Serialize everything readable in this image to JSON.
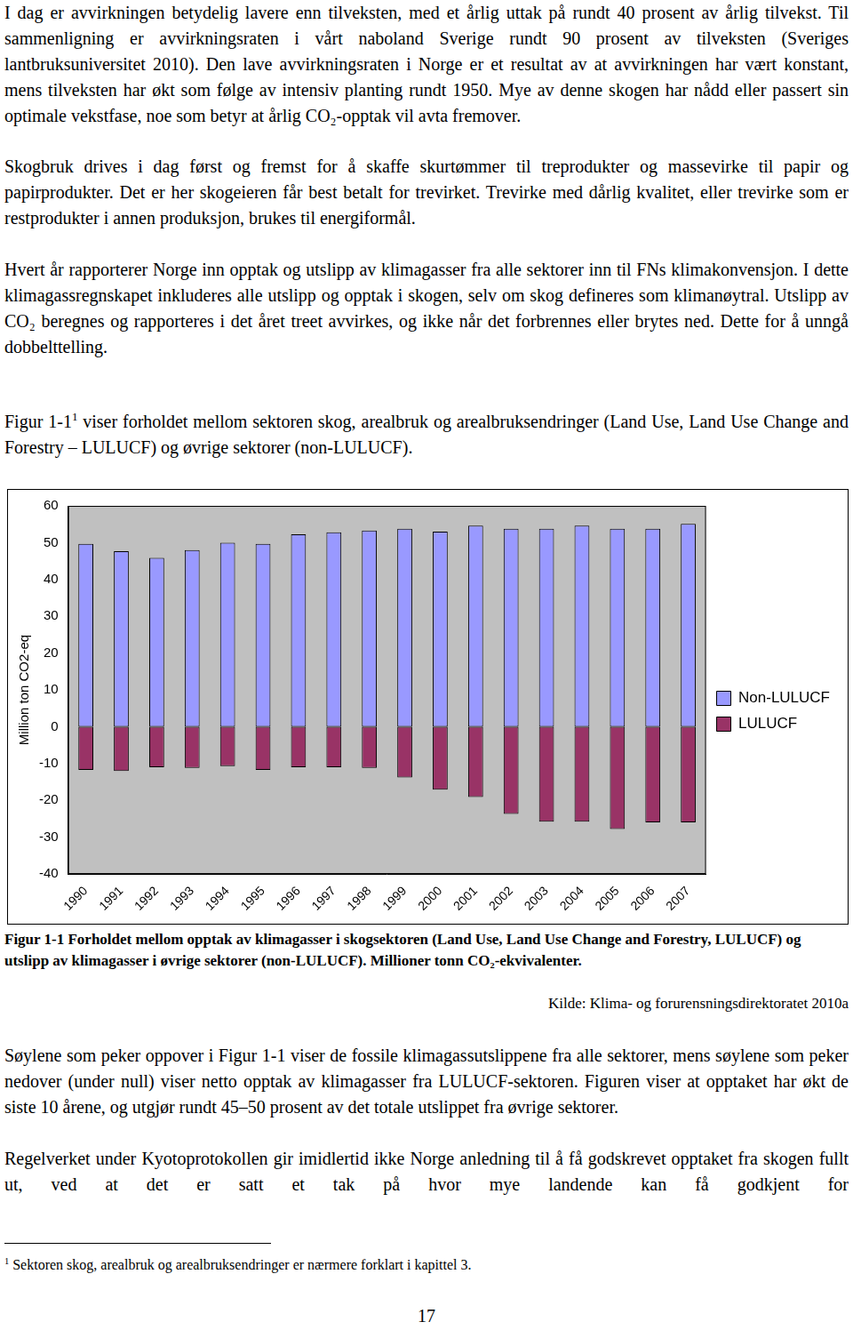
{
  "paragraphs_top": [
    "I dag er avvirkningen betydelig lavere enn tilveksten, med et årlig uttak på rundt 40 prosent av årlig tilvekst. Til sammenligning er avvirkningsraten i vårt naboland Sverige rundt 90 prosent av tilveksten (Sveriges lantbruksuniversitet 2010). Den lave avvirkningsraten i Norge er et resultat av at avvirkningen har vært konstant, mens tilveksten har økt som følge av intensiv planting rundt 1950. Mye av denne skogen har nådd eller passert sin optimale vekstfase, noe som betyr at årlig CO₂-opptak vil avta fremover.",
    "Skogbruk drives i dag først og fremst for å skaffe skurtømmer til treprodukter og massevirke til papir og papirprodukter. Det er her skogeieren får best betalt for trevirket. Trevirke med dårlig kvalitet, eller trevirke som er restprodukter i annen produksjon, brukes til energiformål.",
    "Hvert år rapporterer Norge inn opptak og utslipp av klimagasser fra alle sektorer inn til FNs klimakonvensjon. I dette klimagassregnskapet inkluderes alle utslipp og opptak i skogen, selv om skog defineres som klimanøytral. Utslipp av CO₂ beregnes og rapporteres i det året treet avvirkes, og ikke når det forbrennes eller brytes ned. Dette for å unngå dobbelttelling."
  ],
  "figure_reference": {
    "text": "Figur 1-1",
    "footnote_mark": "1",
    "rest": " viser forholdet mellom sektoren skog, arealbruk og arealbruksendringer (Land Use, Land Use Change and Forestry – LULUCF) og øvrige sektorer (non-LULUCF)."
  },
  "chart_data": {
    "type": "bar",
    "stacked": true,
    "y_label": "Million ton CO2-eq",
    "categories": [
      "1990",
      "1991",
      "1992",
      "1993",
      "1994",
      "1995",
      "1996",
      "1997",
      "1998",
      "1999",
      "2000",
      "2001",
      "2002",
      "2003",
      "2004",
      "2005",
      "2006",
      "2007"
    ],
    "series": [
      {
        "name": "Non-LULUCF",
        "color": "#9999ff",
        "values": [
          49.7,
          47.7,
          45.9,
          48.0,
          50.0,
          49.7,
          52.3,
          52.8,
          53.3,
          53.8,
          53.0,
          54.6,
          53.8,
          53.8,
          54.6,
          53.8,
          53.8,
          55.1
        ]
      },
      {
        "name": "LULUCF",
        "color": "#993366",
        "values": [
          -11.7,
          -12.0,
          -11.0,
          -11.2,
          -10.7,
          -11.7,
          -11.0,
          -11.0,
          -11.2,
          -13.8,
          -17.1,
          -19.1,
          -23.7,
          -25.8,
          -25.8,
          -27.8,
          -26.0,
          -26.0
        ]
      }
    ],
    "ylim": [
      -40,
      60
    ],
    "yticks": [
      -40,
      -30,
      -20,
      -10,
      0,
      10,
      20,
      30,
      40,
      50,
      60
    ],
    "grid": false,
    "legend": "right"
  },
  "caption": "Figur 1-1 Forholdet mellom opptak av klimagasser i skogsektoren (Land Use, Land Use Change and Forestry, LULUCF) og utslipp av klimagasser i øvrige sektorer (non-LULUCF). Millioner tonn CO₂-ekvivalenter.",
  "source": "Kilde: Klima- og forurensningsdirektoratet 2010a",
  "paragraphs_bottom": [
    "Søylene som peker oppover i Figur 1-1 viser de fossile klimagassutslippene fra alle sektorer, mens søylene som peker nedover (under null) viser netto opptak av klimagasser fra LULUCF-sektoren.  Figuren viser at opptaket har økt de siste 10 årene, og utgjør rundt 45–50 prosent av det totale utslippet fra øvrige sektorer.",
    "Regelverket under Kyotoprotokollen gir imidlertid ikke Norge anledning til å få godskrevet opptaket fra skogen fullt ut, ved at det er satt et tak på hvor mye landende kan få godkjent for"
  ],
  "footnote": {
    "mark": "1",
    "text": "Sektoren skog, arealbruk og arealbruksendringer er nærmere forklart i kapittel 3."
  },
  "page_number": "17"
}
